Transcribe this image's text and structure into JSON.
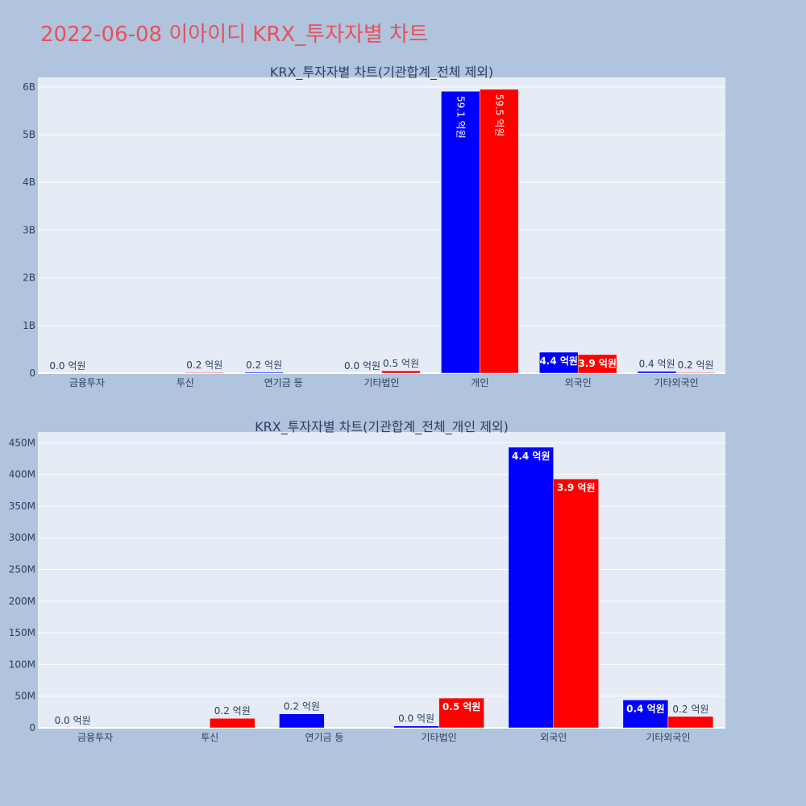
{
  "title": "2022-06-08 이아이디 KRX_투자자별 차트",
  "colors": {
    "buy": "#0000ff",
    "sell": "#ff0000",
    "background": "#b0c4de",
    "plot_bg": "#e5ecf6",
    "title": "#e8505b"
  },
  "chart_data": [
    {
      "type": "bar",
      "title": "KRX_투자자별 차트(기관합계_전체 제외)",
      "categories": [
        "금융투자",
        "투신",
        "연기금 등",
        "기타법인",
        "개인",
        "외국인",
        "기타외국인"
      ],
      "yticks": [
        {
          "value": 0,
          "label": "0"
        },
        {
          "value": 1000000000,
          "label": "1B"
        },
        {
          "value": 2000000000,
          "label": "2B"
        },
        {
          "value": 3000000000,
          "label": "3B"
        },
        {
          "value": 4000000000,
          "label": "4B"
        },
        {
          "value": 5000000000,
          "label": "5B"
        },
        {
          "value": 6000000000,
          "label": "6B"
        }
      ],
      "ylim": [
        0,
        6200000000
      ],
      "series": [
        {
          "color": "#0000ff",
          "values": [
            0,
            null,
            20000000,
            3000000,
            5910000000,
            440000000,
            40000000
          ],
          "labels": [
            "0.0 억원",
            "",
            "0.2 억원",
            "0.0 억원",
            "59.1 억원",
            "4.4 억원",
            "0.4 억원"
          ]
        },
        {
          "color": "#ff0000",
          "values": [
            null,
            15000000,
            null,
            50000000,
            5950000000,
            390000000,
            15000000
          ],
          "labels": [
            "",
            "0.2 억원",
            "",
            "0.5 억원",
            "59.5 억원",
            "3.9 억원",
            "0.2 억원"
          ]
        }
      ]
    },
    {
      "type": "bar",
      "title": "KRX_투자자별 차트(기관합계_전체_개인 제외)",
      "categories": [
        "금융투자",
        "투신",
        "연기금 등",
        "기타법인",
        "외국인",
        "기타외국인"
      ],
      "yticks": [
        {
          "value": 0,
          "label": "0"
        },
        {
          "value": 50000000,
          "label": "50M"
        },
        {
          "value": 100000000,
          "label": "100M"
        },
        {
          "value": 150000000,
          "label": "150M"
        },
        {
          "value": 200000000,
          "label": "200M"
        },
        {
          "value": 250000000,
          "label": "250M"
        },
        {
          "value": 300000000,
          "label": "300M"
        },
        {
          "value": 350000000,
          "label": "350M"
        },
        {
          "value": 400000000,
          "label": "400M"
        },
        {
          "value": 450000000,
          "label": "450M"
        }
      ],
      "ylim": [
        0,
        467000000
      ],
      "series": [
        {
          "color": "#0000ff",
          "values": [
            0,
            null,
            22000000,
            3000000,
            443000000,
            44000000
          ],
          "labels": [
            "0.0 억원",
            "",
            "0.2 억원",
            "0.0 억원",
            "4.4 억원",
            "0.4 억원"
          ]
        },
        {
          "color": "#ff0000",
          "values": [
            null,
            15000000,
            null,
            47000000,
            393000000,
            18000000
          ],
          "labels": [
            "",
            "0.2 억원",
            "",
            "0.5 억원",
            "3.9 억원",
            "0.2 억원"
          ]
        }
      ]
    }
  ]
}
